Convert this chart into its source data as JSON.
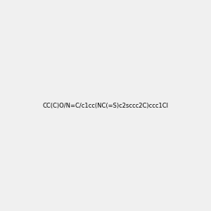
{
  "smiles": "CC(C)O/N=C/c1cc(NC(=S)c2sccc2C)ccc1Cl",
  "img_size": [
    300,
    300
  ],
  "background_color": "#f0f0f0",
  "title": ""
}
